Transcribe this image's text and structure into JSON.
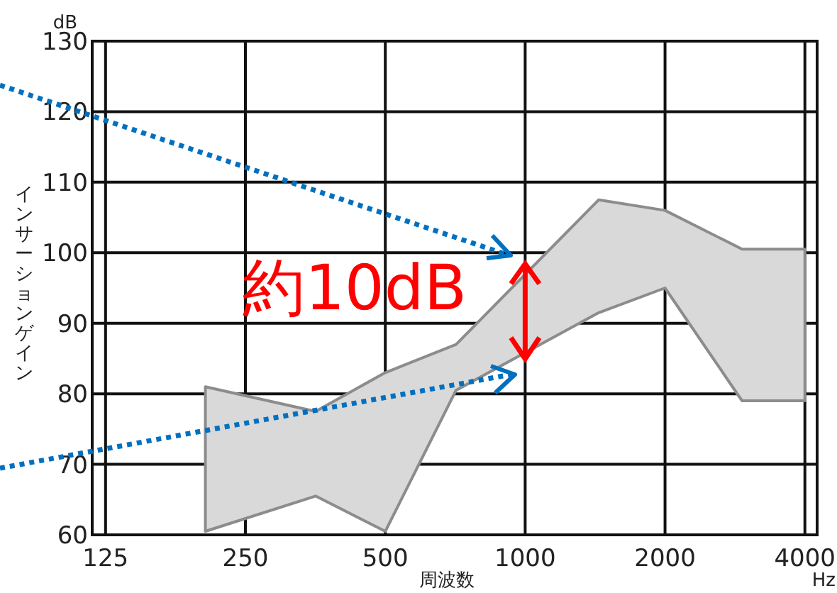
{
  "chart_data": {
    "type": "area",
    "xlabel": "周波数",
    "ylabel": "インサーションゲイン",
    "log": "x",
    "xlim": [
      117,
      4250
    ],
    "xticks": [
      125,
      250,
      500,
      1000,
      2000,
      4000
    ],
    "ylim": [
      60,
      130
    ],
    "yticks": [
      60,
      70,
      80,
      90,
      100,
      110,
      120,
      130
    ],
    "grid": true,
    "annotations": [
      "dB",
      "Hz",
      "約10dB"
    ],
    "series": [
      {
        "color": "#d9d9d9",
        "x": [
          205,
          354,
          500,
          710,
          1440,
          2000,
          2930,
          4000
        ],
        "values": [
          null,
          null,
          null,
          null,
          null,
          null,
          null,
          null
        ],
        "lower": [
          60.5,
          65.5,
          60.5,
          80.5,
          91.5,
          95,
          79,
          79
        ],
        "upper": [
          81,
          77.5,
          83,
          87,
          107.5,
          106,
          100.5,
          100.5
        ]
      }
    ]
  }
}
